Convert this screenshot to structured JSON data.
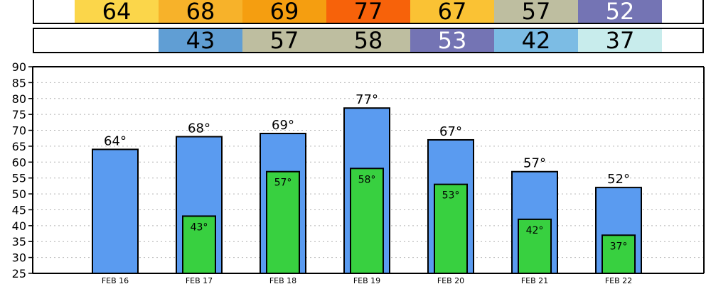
{
  "chart_data": {
    "type": "bar",
    "categories": [
      "FEB 16",
      "FEB 17",
      "FEB 18",
      "FEB 19",
      "FEB 20",
      "FEB 21",
      "FEB 22"
    ],
    "series": [
      {
        "values": [
          64,
          68,
          69,
          77,
          67,
          57,
          52
        ],
        "labels": [
          "64°",
          "68°",
          "69°",
          "77°",
          "67°",
          "57°",
          "52°"
        ]
      },
      {
        "values": [
          null,
          43,
          57,
          58,
          53,
          42,
          37
        ],
        "labels": [
          "",
          "43°",
          "57°",
          "58°",
          "53°",
          "42°",
          "37°"
        ]
      }
    ],
    "ylim": [
      25,
      90
    ],
    "yticks": [
      "25",
      "30",
      "35",
      "40",
      "45",
      "50",
      "55",
      "60",
      "65",
      "70",
      "75",
      "80",
      "85",
      "90"
    ],
    "grid": true,
    "colors": {
      "high_bar": "#5a9bf0",
      "low_bar": "#38d040"
    }
  },
  "high_strip": {
    "cells": [
      {
        "text": "64",
        "bg": "#fbd64a",
        "fg": "#000000"
      },
      {
        "text": "68",
        "bg": "#f7b22a",
        "fg": "#000000"
      },
      {
        "text": "69",
        "bg": "#f59e10",
        "fg": "#000000"
      },
      {
        "text": "77",
        "bg": "#f7620a",
        "fg": "#000000"
      },
      {
        "text": "67",
        "bg": "#fac234",
        "fg": "#000000"
      },
      {
        "text": "57",
        "bg": "#bebea0",
        "fg": "#000000"
      },
      {
        "text": "52",
        "bg": "#7474b4",
        "fg": "#ffffff"
      }
    ]
  },
  "low_strip": {
    "cells": [
      {
        "text": "43",
        "bg": "#609ed4",
        "fg": "#000000"
      },
      {
        "text": "57",
        "bg": "#bebea0",
        "fg": "#000000"
      },
      {
        "text": "58",
        "bg": "#bebea0",
        "fg": "#000000"
      },
      {
        "text": "53",
        "bg": "#7474b4",
        "fg": "#ffffff"
      },
      {
        "text": "42",
        "bg": "#7cbce4",
        "fg": "#000000"
      },
      {
        "text": "37",
        "bg": "#c8ecec",
        "fg": "#000000"
      }
    ]
  }
}
